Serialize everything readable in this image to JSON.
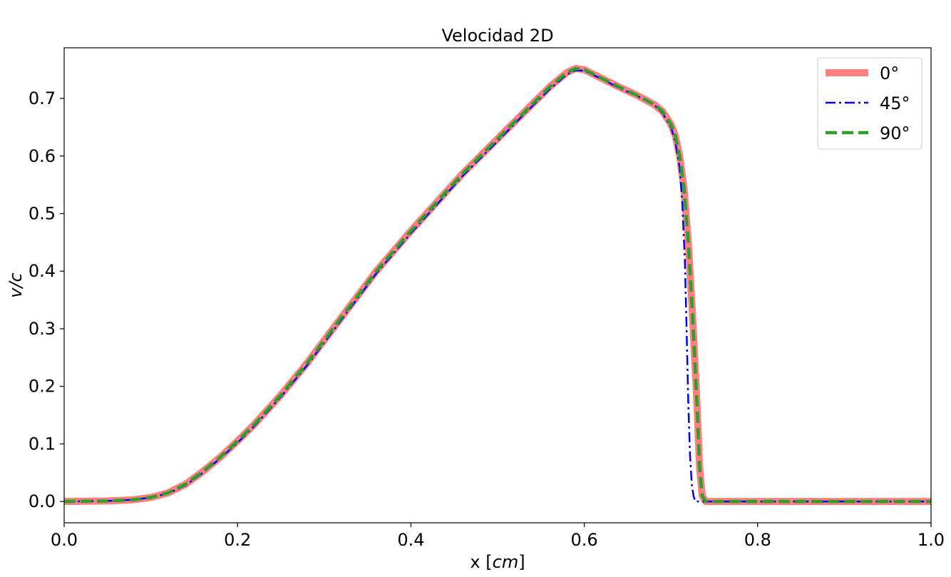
{
  "chart_data": {
    "type": "line",
    "title": "Velocidad 2D",
    "xlabel": "x [",
    "xlabel_unit": "cm",
    "xlabel_close": "]",
    "ylabel": "v/c",
    "xlim": [
      0.0,
      1.0
    ],
    "ylim": [
      -0.037,
      0.788
    ],
    "xticks": [
      0.0,
      0.2,
      0.4,
      0.6,
      0.8,
      1.0
    ],
    "xtick_labels": [
      "0.0",
      "0.2",
      "0.4",
      "0.6",
      "0.8",
      "1.0"
    ],
    "yticks": [
      0.0,
      0.1,
      0.2,
      0.3,
      0.4,
      0.5,
      0.6,
      0.7
    ],
    "ytick_labels": [
      "0.0",
      "0.1",
      "0.2",
      "0.3",
      "0.4",
      "0.5",
      "0.6",
      "0.7"
    ],
    "grid": false,
    "legend_position": "top-right",
    "series": [
      {
        "name": "0°",
        "color": "#ff7f7f",
        "style": "solid-thick",
        "x": [
          0.0,
          0.05,
          0.08,
          0.1,
          0.12,
          0.14,
          0.16,
          0.18,
          0.2,
          0.22,
          0.25,
          0.28,
          0.3,
          0.33,
          0.36,
          0.4,
          0.43,
          0.46,
          0.5,
          0.53,
          0.56,
          0.58,
          0.59,
          0.6,
          0.62,
          0.64,
          0.66,
          0.68,
          0.69,
          0.7,
          0.705,
          0.71,
          0.715,
          0.72,
          0.725,
          0.73,
          0.733,
          0.736,
          0.74,
          0.76,
          0.8,
          0.9,
          1.0
        ],
        "y": [
          0.0,
          0.001,
          0.003,
          0.007,
          0.015,
          0.03,
          0.052,
          0.077,
          0.105,
          0.135,
          0.185,
          0.24,
          0.28,
          0.34,
          0.4,
          0.47,
          0.52,
          0.57,
          0.63,
          0.675,
          0.72,
          0.745,
          0.752,
          0.75,
          0.735,
          0.72,
          0.706,
          0.69,
          0.678,
          0.655,
          0.635,
          0.6,
          0.545,
          0.45,
          0.32,
          0.17,
          0.06,
          0.01,
          0.0,
          0.0,
          0.0,
          0.0,
          0.0
        ]
      },
      {
        "name": "45°",
        "color": "#0000ff",
        "style": "dashdot",
        "x": [
          0.0,
          0.05,
          0.08,
          0.1,
          0.12,
          0.14,
          0.16,
          0.18,
          0.2,
          0.22,
          0.25,
          0.28,
          0.3,
          0.33,
          0.36,
          0.4,
          0.43,
          0.46,
          0.5,
          0.53,
          0.56,
          0.58,
          0.59,
          0.6,
          0.62,
          0.64,
          0.66,
          0.68,
          0.69,
          0.7,
          0.705,
          0.71,
          0.713,
          0.716,
          0.718,
          0.72,
          0.722,
          0.724,
          0.726,
          0.728,
          0.732,
          0.736,
          0.76,
          0.8,
          0.9,
          1.0
        ],
        "y": [
          0.0,
          0.001,
          0.003,
          0.007,
          0.014,
          0.028,
          0.05,
          0.075,
          0.102,
          0.132,
          0.182,
          0.236,
          0.276,
          0.336,
          0.396,
          0.466,
          0.516,
          0.566,
          0.626,
          0.672,
          0.716,
          0.742,
          0.749,
          0.748,
          0.734,
          0.718,
          0.705,
          0.69,
          0.675,
          0.65,
          0.625,
          0.58,
          0.52,
          0.42,
          0.3,
          0.17,
          0.08,
          0.03,
          0.01,
          0.0,
          0.0,
          0.0,
          0.0,
          0.0,
          0.0,
          0.0
        ]
      },
      {
        "name": "90°",
        "color": "#2ca02c",
        "style": "dashed",
        "x": [
          0.0,
          0.05,
          0.08,
          0.1,
          0.12,
          0.14,
          0.16,
          0.18,
          0.2,
          0.22,
          0.25,
          0.28,
          0.3,
          0.33,
          0.36,
          0.4,
          0.43,
          0.46,
          0.5,
          0.53,
          0.56,
          0.58,
          0.59,
          0.6,
          0.62,
          0.64,
          0.66,
          0.68,
          0.69,
          0.7,
          0.705,
          0.71,
          0.715,
          0.72,
          0.725,
          0.73,
          0.733,
          0.736,
          0.74,
          0.76,
          0.8,
          0.9,
          1.0
        ],
        "y": [
          0.0,
          0.001,
          0.003,
          0.007,
          0.015,
          0.03,
          0.052,
          0.077,
          0.105,
          0.135,
          0.185,
          0.24,
          0.28,
          0.34,
          0.4,
          0.47,
          0.52,
          0.57,
          0.63,
          0.675,
          0.72,
          0.745,
          0.752,
          0.75,
          0.735,
          0.72,
          0.706,
          0.69,
          0.678,
          0.655,
          0.635,
          0.6,
          0.545,
          0.45,
          0.32,
          0.17,
          0.06,
          0.01,
          0.0,
          0.0,
          0.0,
          0.0,
          0.0
        ]
      }
    ]
  }
}
